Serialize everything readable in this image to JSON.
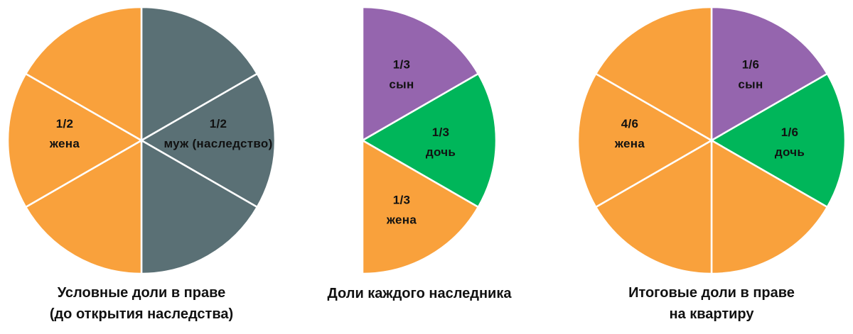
{
  "chart_data": [
    {
      "type": "pie",
      "caption": [
        "Условные доли в праве",
        "(до открытия наследства)"
      ],
      "slices": [
        {
          "label": "муж (наследство)",
          "fraction_text": "1/2",
          "value": 0.5,
          "color": "#5a7075",
          "parts": 3
        },
        {
          "label": "жена",
          "fraction_text": "1/2",
          "value": 0.5,
          "color": "#f9a13c",
          "parts": 3
        }
      ]
    },
    {
      "type": "pie",
      "half": "left",
      "caption": [
        "Доли каждого  наследника"
      ],
      "slices": [
        {
          "label": "сын",
          "fraction_text": "1/3",
          "value": 0.16667,
          "color": "#9565ae",
          "parts": 1
        },
        {
          "label": "дочь",
          "fraction_text": "1/3",
          "value": 0.16667,
          "color": "#00b65a",
          "parts": 1
        },
        {
          "label": "жена",
          "fraction_text": "1/3",
          "value": 0.16667,
          "color": "#f9a13c",
          "parts": 1
        }
      ]
    },
    {
      "type": "pie",
      "caption": [
        "Итоговые доли в праве",
        "на квартиру"
      ],
      "slices": [
        {
          "label": "сын",
          "fraction_text": "1/6",
          "value": 0.16667,
          "color": "#9565ae",
          "parts": 1
        },
        {
          "label": "дочь",
          "fraction_text": "1/6",
          "value": 0.16667,
          "color": "#00b65a",
          "parts": 1
        },
        {
          "label": "жена",
          "fraction_text": "4/6",
          "value": 0.66667,
          "color": "#f9a13c",
          "parts": 4
        }
      ]
    }
  ]
}
